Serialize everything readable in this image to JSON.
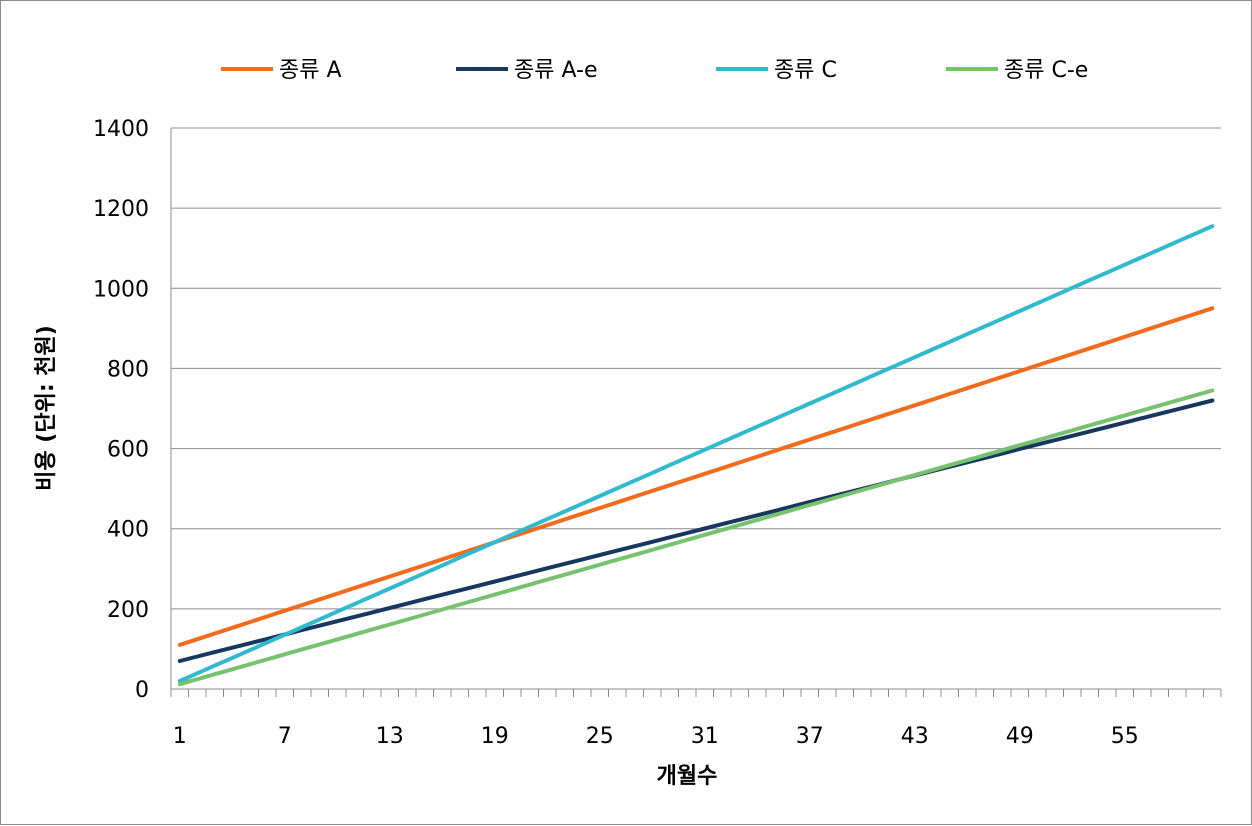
{
  "chart_data": {
    "type": "line",
    "title": "",
    "xlabel": "개월수",
    "ylabel": "비용 (단위: 천원)",
    "x": [
      1,
      2,
      3,
      4,
      5,
      6,
      7,
      8,
      9,
      10,
      11,
      12,
      13,
      14,
      15,
      16,
      17,
      18,
      19,
      20,
      21,
      22,
      23,
      24,
      25,
      26,
      27,
      28,
      29,
      30,
      31,
      32,
      33,
      34,
      35,
      36,
      37,
      38,
      39,
      40,
      41,
      42,
      43,
      44,
      45,
      46,
      47,
      48,
      49,
      50,
      51,
      52,
      53,
      54,
      55,
      56,
      57,
      58,
      59,
      60
    ],
    "xticks_shown": [
      "1",
      "7",
      "13",
      "19",
      "25",
      "31",
      "37",
      "43",
      "49",
      "55"
    ],
    "yticks": [
      "0",
      "200",
      "400",
      "600",
      "800",
      "1000",
      "1200",
      "1400"
    ],
    "ylim": [
      0,
      1400
    ],
    "grid": "horizontal",
    "legend_position": "top",
    "series": [
      {
        "name": "종류 A",
        "color": "#f26b1d",
        "start": 110,
        "end": 950
      },
      {
        "name": "종류 A-e",
        "color": "#17375e",
        "start": 70,
        "end": 720
      },
      {
        "name": "종류 C",
        "color": "#31b9cf",
        "start": 20,
        "end": 1155
      },
      {
        "name": "종류 C-e",
        "color": "#77c26e",
        "start": 12,
        "end": 745
      }
    ]
  }
}
